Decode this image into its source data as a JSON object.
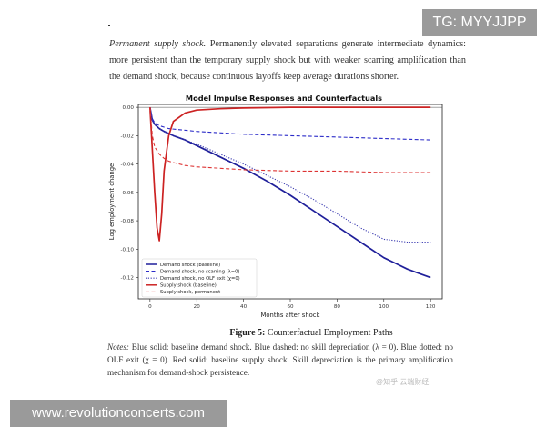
{
  "watermark_top": "TG: MYYJJPP",
  "watermark_bottom": "www.revolutionconcerts.com",
  "source_mark": "@知乎 云端财经",
  "intro": {
    "lead": "Permanent supply shock.",
    "body": " Permanently elevated separations generate intermediate dynamics: more persistent than the temporary supply shock but with weaker scarring amplification than the demand shock, because continuous layoffs keep average durations shorter."
  },
  "figure": {
    "label": "Figure 5:",
    "caption": " Counterfactual Employment Paths"
  },
  "notes": {
    "label": "Notes:",
    "body": " Blue solid: baseline demand shock. Blue dashed: no skill depreciation (λ = 0). Blue dotted: no OLF exit (χ = 0). Red solid: baseline supply shock. Skill depreciation is the primary amplification mechanism for demand-shock persistence."
  },
  "chart_data": {
    "type": "line",
    "title": "Model Impulse Responses and Counterfactuals",
    "xlabel": "Months after shock",
    "ylabel": "Log employment change",
    "xlim": [
      -5,
      125
    ],
    "ylim": [
      -0.135,
      0.002
    ],
    "xticks": [
      0,
      20,
      40,
      60,
      80,
      100,
      120
    ],
    "yticks": [
      0.0,
      -0.02,
      -0.04,
      -0.06,
      -0.08,
      -0.1,
      -0.12
    ],
    "ytick_labels": [
      "0.00",
      "-0.02",
      "-0.04",
      "-0.06",
      "-0.08",
      "-0.10",
      "-0.12"
    ],
    "grid": false,
    "legend_position": "bottom-left",
    "zero_line": true,
    "series": [
      {
        "name": "Demand shock (baseline)",
        "color": "#1f1f9a",
        "style": "solid",
        "x": [
          0,
          1,
          2,
          4,
          6,
          10,
          15,
          20,
          30,
          40,
          50,
          60,
          70,
          80,
          90,
          100,
          105,
          110,
          115,
          120
        ],
        "y": [
          0,
          -0.009,
          -0.012,
          -0.015,
          -0.017,
          -0.02,
          -0.023,
          -0.027,
          -0.035,
          -0.043,
          -0.052,
          -0.062,
          -0.073,
          -0.084,
          -0.095,
          -0.106,
          -0.11,
          -0.114,
          -0.117,
          -0.12
        ]
      },
      {
        "name": "Demand shock, no scarring (λ=0)",
        "color": "#2c2cc8",
        "style": "dashed",
        "x": [
          0,
          1,
          2,
          4,
          8,
          20,
          40,
          60,
          80,
          100,
          120
        ],
        "y": [
          0,
          -0.008,
          -0.011,
          -0.013,
          -0.015,
          -0.017,
          -0.019,
          -0.02,
          -0.021,
          -0.022,
          -0.023
        ]
      },
      {
        "name": "Demand shock, no OLF exit (χ=0)",
        "color": "#3a3ab0",
        "style": "dotted",
        "x": [
          0,
          1,
          2,
          4,
          6,
          10,
          20,
          30,
          40,
          50,
          60,
          70,
          80,
          90,
          95,
          100,
          110,
          120
        ],
        "y": [
          0,
          -0.009,
          -0.012,
          -0.015,
          -0.017,
          -0.02,
          -0.026,
          -0.033,
          -0.04,
          -0.048,
          -0.056,
          -0.065,
          -0.075,
          -0.085,
          -0.089,
          -0.093,
          -0.095,
          -0.095
        ]
      },
      {
        "name": "Supply shock (baseline)",
        "color": "#cc2222",
        "style": "solid",
        "x": [
          0,
          1,
          2,
          3,
          4,
          5,
          6,
          8,
          10,
          15,
          20,
          30,
          40,
          60,
          80,
          100,
          120
        ],
        "y": [
          0,
          -0.03,
          -0.06,
          -0.085,
          -0.094,
          -0.075,
          -0.045,
          -0.02,
          -0.01,
          -0.004,
          -0.002,
          -0.001,
          -0.0005,
          0,
          0,
          0,
          0
        ]
      },
      {
        "name": "Supply shock, permanent",
        "color": "#dd3333",
        "style": "dashed",
        "x": [
          0,
          1,
          2,
          4,
          6,
          8,
          10,
          15,
          20,
          30,
          40,
          60,
          80,
          100,
          120
        ],
        "y": [
          0,
          -0.02,
          -0.028,
          -0.033,
          -0.036,
          -0.038,
          -0.039,
          -0.041,
          -0.042,
          -0.043,
          -0.044,
          -0.045,
          -0.045,
          -0.046,
          -0.046
        ]
      }
    ]
  }
}
